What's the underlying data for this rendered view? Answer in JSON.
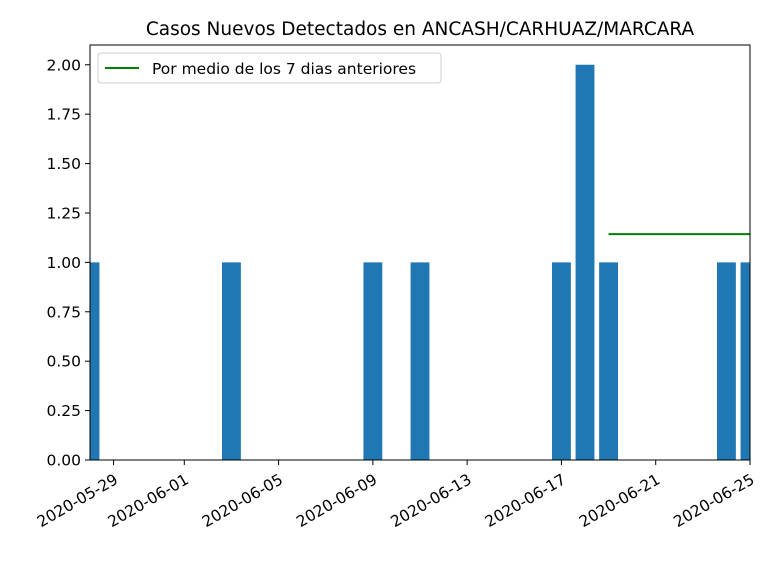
{
  "chart_data": {
    "type": "bar",
    "title": "Casos Nuevos Detectados en ANCASH/CARHUAZ/MARCARA",
    "xlabel": "",
    "ylabel": "",
    "x_start": "2020-05-28",
    "x_end": "2020-06-25",
    "ylim": [
      0,
      2.1
    ],
    "yticks": [
      "0.00",
      "0.25",
      "0.50",
      "0.75",
      "1.00",
      "1.25",
      "1.50",
      "1.75",
      "2.00"
    ],
    "ytick_values": [
      0,
      0.25,
      0.5,
      0.75,
      1.0,
      1.25,
      1.5,
      1.75,
      2.0
    ],
    "xticks": [
      "2020-05-29",
      "2020-06-01",
      "2020-06-05",
      "2020-06-09",
      "2020-06-13",
      "2020-06-17",
      "2020-06-21",
      "2020-06-25"
    ],
    "bars": [
      {
        "date": "2020-05-28",
        "value": 1
      },
      {
        "date": "2020-06-03",
        "value": 1
      },
      {
        "date": "2020-06-09",
        "value": 1
      },
      {
        "date": "2020-06-11",
        "value": 1
      },
      {
        "date": "2020-06-17",
        "value": 1
      },
      {
        "date": "2020-06-18",
        "value": 2
      },
      {
        "date": "2020-06-19",
        "value": 1
      },
      {
        "date": "2020-06-24",
        "value": 1
      },
      {
        "date": "2020-06-25",
        "value": 1
      }
    ],
    "line": {
      "name": "Por medio de los 7 dias anteriores",
      "color": "#008000",
      "points": [
        {
          "date": "2020-06-19",
          "value": 1.142857
        },
        {
          "date": "2020-06-25",
          "value": 1.142857
        }
      ]
    },
    "bar_color": "#1f77b4",
    "legend_position": "upper-left",
    "grid": false
  }
}
